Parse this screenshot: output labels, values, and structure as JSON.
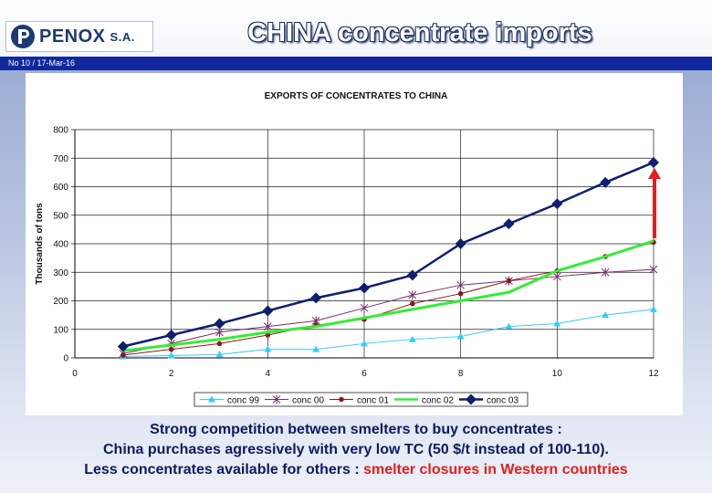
{
  "header": {
    "logo_name": "PENOX",
    "logo_suffix": "S.A.",
    "title": "CHINA concentrate imports",
    "subtitle": "No 10 / 17-Mar-16"
  },
  "chart_data": {
    "type": "line",
    "title": "EXPORTS OF CONCENTRATES TO CHINA",
    "xlabel": "",
    "ylabel": "Thousands of tons",
    "xlim": [
      0,
      12
    ],
    "ylim": [
      0,
      800
    ],
    "xticks": [
      0,
      2,
      4,
      6,
      8,
      10,
      12
    ],
    "yticks": [
      0,
      100,
      200,
      300,
      400,
      500,
      600,
      700,
      800
    ],
    "grid": true,
    "legend_position": "bottom",
    "x": [
      1,
      2,
      3,
      4,
      5,
      6,
      7,
      8,
      9,
      10,
      11,
      12
    ],
    "series": [
      {
        "name": "conc 99",
        "color": "#33ccff",
        "marker": "triangle",
        "values": [
          5,
          8,
          12,
          30,
          30,
          50,
          65,
          75,
          110,
          120,
          150,
          170
        ]
      },
      {
        "name": "conc 00",
        "color": "#7a2d6e",
        "marker": "star",
        "values": [
          15,
          50,
          90,
          110,
          130,
          175,
          220,
          255,
          270,
          285,
          300,
          310
        ]
      },
      {
        "name": "conc 01",
        "color": "#8b1a1a",
        "marker": "dot",
        "values": [
          10,
          30,
          50,
          80,
          115,
          135,
          190,
          225,
          270,
          305,
          355,
          405
        ]
      },
      {
        "name": "conc 02",
        "color": "#33ee33",
        "marker": "none",
        "values": [
          25,
          45,
          65,
          90,
          110,
          140,
          170,
          200,
          230,
          305,
          355,
          410
        ]
      },
      {
        "name": "conc 03",
        "color": "#0f1f6e",
        "marker": "diamond",
        "values": [
          40,
          80,
          120,
          165,
          210,
          245,
          290,
          400,
          470,
          540,
          615,
          685
        ]
      }
    ],
    "annotation_color": "#e31e1e"
  },
  "footer": {
    "line1": "Strong competition between smelters to buy concentrates :",
    "line2": "China purchases agressively with very low TC (50 $/t instead of 100-110).",
    "line3_prefix": "Less concentrates available for others : ",
    "line3_highlight": "smelter closures in Western countries"
  }
}
